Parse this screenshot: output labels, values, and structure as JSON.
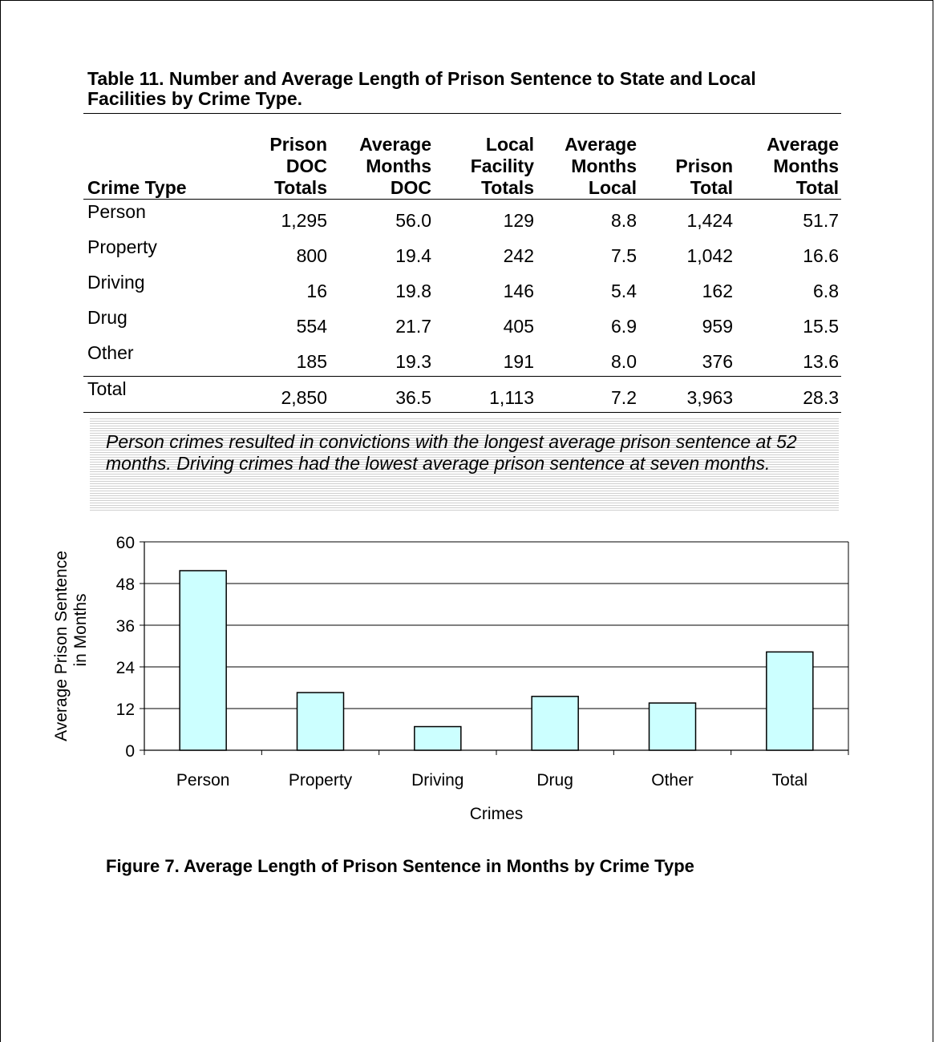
{
  "table": {
    "title": "Table 11. Number and Average Length of Prison Sentence to State and Local Facilities by Crime Type.",
    "headers": [
      [
        "Crime Type"
      ],
      [
        "Prison",
        "DOC",
        "Totals"
      ],
      [
        "Average",
        "Months",
        "DOC"
      ],
      [
        "Local",
        "Facility",
        "Totals"
      ],
      [
        "Average",
        "Months",
        "Local"
      ],
      [
        "Prison",
        "Total"
      ],
      [
        "Average",
        "Months",
        "Total"
      ]
    ],
    "rows": [
      [
        "Person",
        "1,295",
        "56.0",
        "129",
        "8.8",
        "1,424",
        "51.7"
      ],
      [
        "Property",
        "800",
        "19.4",
        "242",
        "7.5",
        "1,042",
        "16.6"
      ],
      [
        "Driving",
        "16",
        "19.8",
        "146",
        "5.4",
        "162",
        "6.8"
      ],
      [
        "Drug",
        "554",
        "21.7",
        "405",
        "6.9",
        "959",
        "15.5"
      ],
      [
        "Other",
        "185",
        "19.3",
        "191",
        "8.0",
        "376",
        "13.6"
      ]
    ],
    "total_row": [
      "Total",
      "2,850",
      "36.5",
      "1,113",
      "7.2",
      "3,963",
      "28.3"
    ]
  },
  "callout": {
    "text": "Person crimes resulted in convictions with the longest average prison sentence at 52 months. Driving crimes had the lowest average prison sentence at seven months."
  },
  "chart_data": {
    "type": "bar",
    "categories": [
      "Person",
      "Property",
      "Driving",
      "Drug",
      "Other",
      "Total"
    ],
    "values": [
      51.7,
      16.6,
      6.8,
      15.5,
      13.6,
      28.3
    ],
    "title": "",
    "xlabel": "Crimes",
    "ylabel": [
      "Average Prison Sentence",
      "in Months"
    ],
    "ylim": [
      0,
      60
    ],
    "yticks": [
      0,
      12,
      24,
      36,
      48,
      60
    ],
    "grid": true,
    "legend": "none",
    "bar_color": "#ccffff",
    "bar_stroke": "#000000"
  },
  "figure_caption": "Figure 7. Average Length of Prison Sentence in Months by Crime Type"
}
